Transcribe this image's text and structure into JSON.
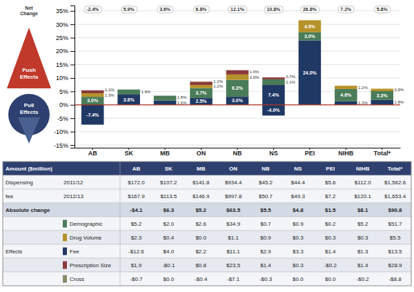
{
  "chart_data": {
    "type": "bar",
    "stacked": true,
    "grid": true,
    "data_labels": true,
    "categories": [
      "AB",
      "SK",
      "MB",
      "ON",
      "NB",
      "NS",
      "PEI",
      "NIHB",
      "Total*"
    ],
    "series": [
      {
        "color": "#1f3864",
        "values": [
          0.0,
          3.8,
          1.6,
          2.5,
          3.0,
          7.4,
          24.0,
          1.3,
          1.8
        ],
        "value_labels": [
          null,
          "3.8%",
          "1.6%",
          "2.5%",
          "3.0%",
          "7.4%",
          "24.0%",
          "1.3%",
          "1.8%"
        ]
      },
      {
        "color": "#4a7c59",
        "values": [
          3.0,
          1.9,
          1.8,
          3.7,
          6.3,
          2.1,
          3.0,
          4.6,
          3.3
        ],
        "value_labels": [
          "3.0%",
          "1.9%",
          "1.8%",
          "3.7%",
          "6.3%",
          "2.1%",
          "3.0%",
          "4.6%",
          "3.3%"
        ]
      },
      {
        "color": "#b5922a",
        "values": [
          1.3,
          0.0,
          0.0,
          1.2,
          2.0,
          0.0,
          4.5,
          1.2,
          0.9
        ],
        "value_labels": [
          "1.3%",
          null,
          null,
          "1.2%",
          "2.0%",
          null,
          "4.5%",
          "1.2%",
          "0.9%"
        ]
      },
      {
        "color": "#8b3a3a",
        "values": [
          1.1,
          0.0,
          0.0,
          1.2,
          1.6,
          0.7,
          0.0,
          0.0,
          0.0
        ],
        "value_labels": [
          "1.1%",
          null,
          null,
          "1.2%",
          "1.6%",
          "0.7%",
          null,
          null,
          null
        ]
      },
      {
        "color": "#1f3864",
        "values": [
          -7.4,
          0.0,
          0.0,
          0.0,
          0.0,
          -4.0,
          0.0,
          0.0,
          0.0
        ],
        "value_labels": [
          "-7.4%",
          null,
          null,
          null,
          null,
          "-4.0%",
          null,
          null,
          null
        ]
      }
    ],
    "ylim": [
      -16,
      37
    ],
    "yticks": [
      {
        "value": -15,
        "label": "-15%"
      },
      {
        "value": -10,
        "label": "-10%"
      },
      {
        "value": -5,
        "label": "-5%"
      },
      {
        "value": 0,
        "label": "0%"
      },
      {
        "value": 5,
        "label": "5%"
      },
      {
        "value": 10,
        "label": "10%"
      },
      {
        "value": 15,
        "label": "15%"
      },
      {
        "value": 20,
        "label": "20%"
      },
      {
        "value": 25,
        "label": "25%"
      },
      {
        "value": 30,
        "label": "30%"
      },
      {
        "value": 35,
        "label": "35%"
      }
    ],
    "net_change": [
      "-2.4%",
      "5.9%",
      "3.6%",
      "6.8%",
      "12.1%",
      "10.8%",
      "26.8%",
      "7.2%",
      "5.8%"
    ],
    "annotations": [
      "Net\nChange",
      "Push\nEffects",
      "Pull\nEffects"
    ],
    "table": {
      "rows": [
        [
          "Amount ($million)",
          null,
          "AB",
          "SK",
          "MB",
          "ON",
          "NB",
          "NS",
          "PEI",
          "NIHB",
          "Total*"
        ],
        [
          "Dispensing",
          "2011/12",
          "$172.0",
          "$107.2",
          "$141.8",
          "$934.4",
          "$45.2",
          "$44.4",
          "$5.6",
          "$112.0",
          "$1,562.6"
        ],
        [
          "fee",
          "2012/13",
          "$167.9",
          "$113.5",
          "$146.9",
          "$997.8",
          "$50.7",
          "$49.3",
          "$7.2",
          "$120.1",
          "$1,653.4"
        ],
        [
          "Absolute change",
          null,
          "-$4.1",
          "$6.3",
          "$5.2",
          "$63.5",
          "$5.5",
          "$4.8",
          "$1.5",
          "$8.1",
          "$90.8"
        ],
        [
          null,
          "Demographic",
          "$5.2",
          "$2.0",
          "$2.6",
          "$34.9",
          "$0.7",
          "$0.9",
          "$0.2",
          "$5.2",
          "$51.7"
        ],
        [
          null,
          "Drug Volume",
          "$2.3",
          "$0.4",
          "$0.0",
          "$1.1",
          "$0.9",
          "$0.3",
          "$0.3",
          "$0.3",
          "$5.5"
        ],
        [
          "Effects",
          "Fee",
          "-$12.6",
          "$4.0",
          "$2.2",
          "$11.1",
          "$2.9",
          "$3.3",
          "$1.4",
          "$1.3",
          "$13.5"
        ],
        [
          null,
          "Prescription Size",
          "$1.9",
          "-$0.1",
          "$0.8",
          "$23.5",
          "$1.4",
          "$0.3",
          "-$0.2",
          "$1.4",
          "$28.9"
        ],
        [
          null,
          "Cross",
          "-$0.7",
          "$0.0",
          "-$0.4",
          "-$7.1",
          "-$0.3",
          "$0.0",
          "$0.0",
          "-$0.2",
          "-$8.8"
        ]
      ],
      "colors": [
        null,
        null,
        null,
        null,
        "#4a7c59",
        "#b5922a",
        "#1f3864",
        "#8b3a3a",
        "#8a8a6a"
      ]
    }
  }
}
